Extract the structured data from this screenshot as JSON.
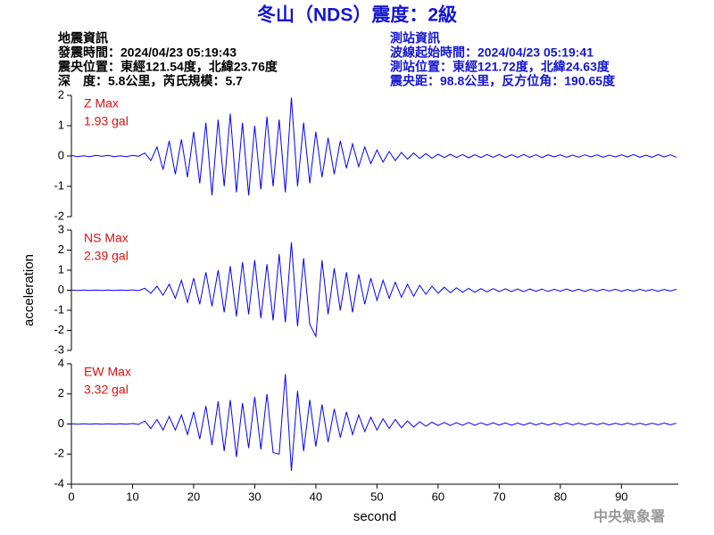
{
  "header": {
    "title": "冬山（NDS）震度：2級",
    "left": [
      "地震資訊",
      "發震時間：2024/04/23 05:19:43",
      "震央位置：東經121.54度，北緯23.76度",
      "深　度：5.8公里，芮氏規模：5.7"
    ],
    "right": [
      "測站資訊",
      "波線起始時間：2024/04/23 05:19:41",
      "測站位置：東經121.72度，北緯24.63度",
      "震央距：98.8公里，反方位角：190.65度"
    ],
    "agency": "中央氣象署"
  },
  "chart_data": [
    {
      "type": "line",
      "annotations": [
        "Z Max",
        "1.93 gal"
      ],
      "color": "#0000ff",
      "x": [
        0,
        1,
        2,
        3,
        4,
        5,
        6,
        7,
        8,
        9,
        10,
        11,
        12,
        13,
        14,
        15,
        16,
        17,
        18,
        19,
        20,
        21,
        22,
        23,
        24,
        25,
        26,
        27,
        28,
        29,
        30,
        31,
        32,
        33,
        34,
        35,
        36,
        37,
        38,
        39,
        40,
        41,
        42,
        43,
        44,
        45,
        46,
        47,
        48,
        49,
        50,
        51,
        52,
        53,
        54,
        55,
        56,
        57,
        58,
        59,
        60,
        61,
        62,
        63,
        64,
        65,
        66,
        67,
        68,
        69,
        70,
        71,
        72,
        73,
        74,
        75,
        76,
        77,
        78,
        79,
        80,
        81,
        82,
        83,
        84,
        85,
        86,
        87,
        88,
        89,
        90,
        91,
        92,
        93,
        94,
        95,
        96,
        97,
        98,
        99
      ],
      "values": [
        0.02,
        -0.02,
        0.01,
        -0.02,
        0.02,
        -0.01,
        0.02,
        -0.02,
        0.01,
        -0.02,
        0.02,
        -0.01,
        0.1,
        -0.15,
        0.3,
        -0.45,
        0.5,
        -0.6,
        0.55,
        -0.7,
        0.8,
        -0.9,
        1.1,
        -1.3,
        1.2,
        -1.0,
        1.4,
        -1.2,
        1.1,
        -1.3,
        1.0,
        -1.1,
        1.3,
        -1.0,
        1.2,
        -1.2,
        1.93,
        -1.0,
        1.1,
        -0.9,
        0.8,
        -0.7,
        0.6,
        -0.6,
        0.5,
        -0.4,
        0.4,
        -0.35,
        0.3,
        -0.25,
        0.2,
        -0.2,
        0.15,
        -0.15,
        0.12,
        -0.1,
        0.1,
        -0.08,
        0.08,
        -0.07,
        0.06,
        -0.05,
        0.06,
        -0.05,
        0.05,
        -0.06,
        0.04,
        -0.05,
        0.05,
        -0.04,
        0.05,
        -0.05,
        0.04,
        -0.04,
        0.05,
        -0.04,
        0.04,
        -0.05,
        0.04,
        -0.03,
        0.04,
        -0.04,
        0.03,
        -0.04,
        0.04,
        -0.03,
        0.04,
        -0.04,
        0.03,
        -0.03,
        0.04,
        -0.03,
        0.05,
        -0.04,
        0.03,
        -0.04,
        0.05,
        -0.03,
        0.04,
        -0.04
      ],
      "ylim": [
        -2,
        2
      ],
      "yticks": [
        -2,
        -1,
        0,
        1,
        2
      ]
    },
    {
      "type": "line",
      "annotations": [
        "NS Max",
        "2.39 gal"
      ],
      "color": "#0000ff",
      "y_label": "acceleration",
      "x": [
        0,
        1,
        2,
        3,
        4,
        5,
        6,
        7,
        8,
        9,
        10,
        11,
        12,
        13,
        14,
        15,
        16,
        17,
        18,
        19,
        20,
        21,
        22,
        23,
        24,
        25,
        26,
        27,
        28,
        29,
        30,
        31,
        32,
        33,
        34,
        35,
        36,
        37,
        38,
        39,
        40,
        41,
        42,
        43,
        44,
        45,
        46,
        47,
        48,
        49,
        50,
        51,
        52,
        53,
        54,
        55,
        56,
        57,
        58,
        59,
        60,
        61,
        62,
        63,
        64,
        65,
        66,
        67,
        68,
        69,
        70,
        71,
        72,
        73,
        74,
        75,
        76,
        77,
        78,
        79,
        80,
        81,
        82,
        83,
        84,
        85,
        86,
        87,
        88,
        89,
        90,
        91,
        92,
        93,
        94,
        95,
        96,
        97,
        98,
        99
      ],
      "values": [
        0.01,
        -0.01,
        0.01,
        -0.01,
        0.01,
        -0.01,
        0.01,
        -0.01,
        0.01,
        -0.01,
        0.02,
        -0.02,
        0.1,
        -0.15,
        0.2,
        -0.25,
        0.3,
        -0.4,
        0.5,
        -0.6,
        0.6,
        -0.7,
        0.9,
        -0.8,
        1.0,
        -1.1,
        1.2,
        -1.3,
        1.4,
        -1.2,
        1.5,
        -1.4,
        1.3,
        -1.5,
        1.8,
        -1.6,
        2.39,
        -1.8,
        1.6,
        -1.7,
        -2.3,
        1.5,
        -1.2,
        1.1,
        -1.0,
        0.9,
        -1.1,
        0.8,
        -0.7,
        0.6,
        -0.5,
        0.5,
        -0.4,
        0.4,
        -0.35,
        0.3,
        -0.3,
        0.25,
        -0.2,
        0.2,
        -0.15,
        0.15,
        -0.12,
        0.12,
        -0.1,
        0.1,
        -0.1,
        0.08,
        -0.08,
        0.08,
        -0.07,
        0.07,
        -0.06,
        0.06,
        -0.07,
        0.06,
        -0.05,
        0.06,
        -0.06,
        0.05,
        -0.05,
        0.06,
        -0.05,
        0.05,
        -0.06,
        0.05,
        -0.05,
        0.05,
        -0.04,
        0.05,
        -0.05,
        0.04,
        -0.05,
        0.05,
        -0.04,
        0.04,
        -0.05,
        0.04,
        -0.04,
        0.05
      ],
      "ylim": [
        -3,
        3
      ],
      "yticks": [
        -3,
        -2,
        -1,
        0,
        1,
        2,
        3
      ]
    },
    {
      "type": "line",
      "annotations": [
        "EW Max",
        "3.32 gal"
      ],
      "color": "#0000ff",
      "x_label": "second",
      "x": [
        0,
        1,
        2,
        3,
        4,
        5,
        6,
        7,
        8,
        9,
        10,
        11,
        12,
        13,
        14,
        15,
        16,
        17,
        18,
        19,
        20,
        21,
        22,
        23,
        24,
        25,
        26,
        27,
        28,
        29,
        30,
        31,
        32,
        33,
        34,
        35,
        36,
        37,
        38,
        39,
        40,
        41,
        42,
        43,
        44,
        45,
        46,
        47,
        48,
        49,
        50,
        51,
        52,
        53,
        54,
        55,
        56,
        57,
        58,
        59,
        60,
        61,
        62,
        63,
        64,
        65,
        66,
        67,
        68,
        69,
        70,
        71,
        72,
        73,
        74,
        75,
        76,
        77,
        78,
        79,
        80,
        81,
        82,
        83,
        84,
        85,
        86,
        87,
        88,
        89,
        90,
        91,
        92,
        93,
        94,
        95,
        96,
        97,
        98,
        99
      ],
      "values": [
        0.02,
        -0.02,
        0.02,
        -0.02,
        0.02,
        -0.02,
        0.02,
        -0.02,
        0.02,
        -0.02,
        0.03,
        -0.03,
        0.2,
        -0.3,
        0.3,
        -0.4,
        0.5,
        -0.4,
        0.6,
        -0.7,
        0.8,
        -1.0,
        1.2,
        -1.4,
        1.5,
        -1.8,
        1.6,
        -2.2,
        1.4,
        -1.6,
        1.8,
        -1.7,
        2.0,
        -1.9,
        -2.0,
        3.32,
        -3.1,
        2.2,
        -1.8,
        1.6,
        -1.5,
        1.3,
        -1.2,
        1.0,
        -0.9,
        0.8,
        -0.7,
        0.6,
        -0.5,
        0.45,
        -0.4,
        0.35,
        -0.3,
        0.3,
        -0.25,
        0.2,
        -0.2,
        0.15,
        -0.15,
        0.12,
        -0.1,
        0.1,
        -0.1,
        0.09,
        -0.08,
        0.1,
        -0.08,
        0.08,
        -0.07,
        0.08,
        -0.07,
        0.07,
        -0.08,
        0.06,
        -0.07,
        0.07,
        -0.06,
        0.06,
        -0.07,
        0.06,
        -0.06,
        0.07,
        -0.06,
        0.05,
        -0.06,
        0.06,
        -0.05,
        0.06,
        -0.06,
        0.05,
        -0.05,
        0.06,
        -0.05,
        0.05,
        -0.06,
        0.05,
        -0.05,
        0.06,
        -0.05,
        0.05
      ],
      "ylim": [
        -4,
        4
      ],
      "yticks": [
        -4,
        -2,
        0,
        2,
        4
      ],
      "xlim": [
        0,
        99.3
      ],
      "xticks": [
        0,
        10,
        20,
        30,
        40,
        50,
        60,
        70,
        80,
        90
      ]
    }
  ]
}
